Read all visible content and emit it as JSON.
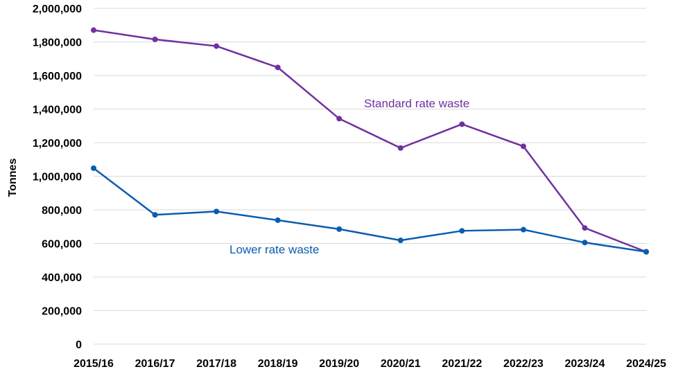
{
  "chart_data": {
    "type": "line",
    "title": "",
    "xlabel": "",
    "ylabel": "Tonnes",
    "ylim": [
      0,
      2000000
    ],
    "y_ticks": [
      0,
      200000,
      400000,
      600000,
      800000,
      1000000,
      1200000,
      1400000,
      1600000,
      1800000,
      2000000
    ],
    "y_tick_labels": [
      "0",
      "200,000",
      "400,000",
      "600,000",
      "800,000",
      "1,000,000",
      "1,200,000",
      "1,400,000",
      "1,600,000",
      "1,800,000",
      "2,000,000"
    ],
    "grid": true,
    "categories": [
      "2015/16",
      "2016/17",
      "2017/18",
      "2018/19",
      "2019/20",
      "2020/21",
      "2021/22",
      "2022/23",
      "2023/24",
      "2024/25"
    ],
    "series": [
      {
        "name": "Standard rate waste",
        "color": "#7030a0",
        "values": [
          1870000,
          1815000,
          1775000,
          1648000,
          1343000,
          1168000,
          1310000,
          1178000,
          692000,
          550000
        ]
      },
      {
        "name": "Lower rate waste",
        "color": "#0b5cb0",
        "values": [
          1048000,
          770000,
          790000,
          738000,
          685000,
          618000,
          675000,
          682000,
          605000,
          550000
        ]
      }
    ],
    "annotations": [
      {
        "text": "Standard rate waste",
        "series": 0
      },
      {
        "text": "Lower rate waste",
        "series": 1
      }
    ]
  }
}
